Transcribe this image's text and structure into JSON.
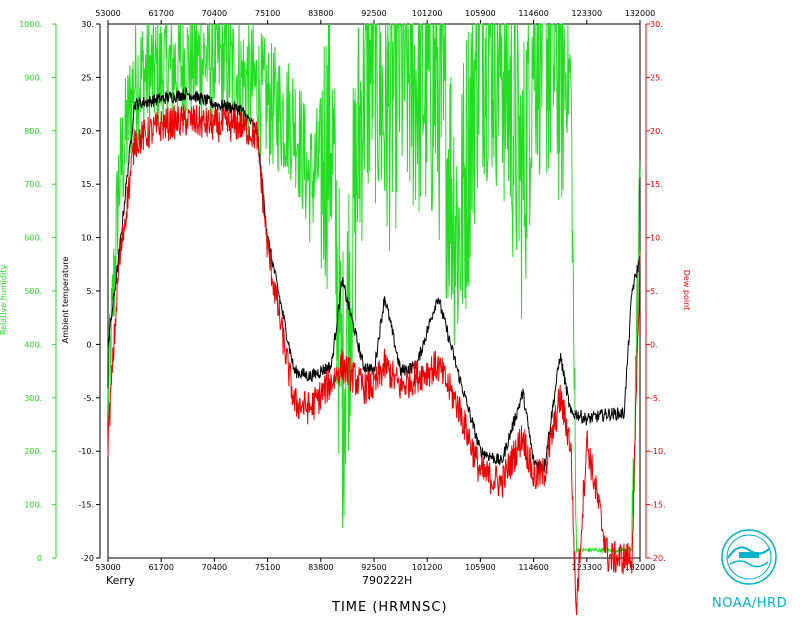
{
  "colors": {
    "rh": "#22dd22",
    "temp": "#000000",
    "dew": "#ee0000",
    "noaa": "#00b4c8"
  },
  "footer": {
    "storm": "Kerry",
    "flight": "790222H",
    "time_label": "TIME (HRMNSC)",
    "org": "NOAA/HRD"
  },
  "chart_data": {
    "type": "line",
    "x_ticks": [
      "53000",
      "61700",
      "70400",
      "75100",
      "83800",
      "92500",
      "101200",
      "105900",
      "114600",
      "123300",
      "132000"
    ],
    "top_x_ticks": [
      "53000",
      "61700",
      "70400",
      "75100",
      "83800",
      "92500",
      "101200",
      "105900",
      "114600",
      "123300",
      "132000"
    ],
    "xlim_hours_fraction": [
      0,
      1
    ],
    "xlabel": "TIME (HRMNSC)",
    "y_left_label": "Relative humidity",
    "y_left_ticks": [
      "0",
      "100.",
      "200.",
      "300.",
      "400.",
      "500.",
      "600.",
      "700.",
      "800.",
      "900.",
      "1000."
    ],
    "y_left_lim": [
      0,
      1000
    ],
    "y_temp_label": "Ambient temperature",
    "y_temp_ticks": [
      "-20",
      "-15.",
      "-10.",
      "-5.",
      "0.",
      "5.",
      "10.",
      "15.",
      "20.",
      "25.",
      "30."
    ],
    "y_right_label": "Dew point",
    "y_right_ticks": [
      "-20.",
      "-15.",
      "-10.",
      "-5.",
      "0.",
      "5.",
      "10.",
      "15.",
      "20.",
      "25.",
      "30."
    ],
    "y_temp_lim": [
      -20,
      30
    ],
    "series": [
      {
        "name": "Ambient temperature",
        "color_key": "temp",
        "x": [
          0.0,
          0.02,
          0.05,
          0.1,
          0.15,
          0.2,
          0.25,
          0.28,
          0.3,
          0.35,
          0.38,
          0.42,
          0.44,
          0.48,
          0.5,
          0.52,
          0.55,
          0.58,
          0.62,
          0.66,
          0.7,
          0.74,
          0.78,
          0.8,
          0.82,
          0.85,
          0.87,
          0.88,
          0.9,
          0.94,
          0.97,
          0.985,
          1.0
        ],
        "y": [
          0.0,
          8.0,
          22.5,
          23.0,
          23.5,
          22.5,
          22.0,
          20.0,
          10.0,
          -2.5,
          -3.0,
          -2.0,
          6.0,
          -2.0,
          -2.5,
          4.5,
          -2.5,
          -2.0,
          4.5,
          -3.0,
          -10.0,
          -11.0,
          -4.5,
          -11.0,
          -11.5,
          -1.0,
          -6.5,
          -6.5,
          -7.0,
          -6.5,
          -6.5,
          5.0,
          8.0
        ]
      },
      {
        "name": "Dew point",
        "color_key": "dew",
        "x": [
          0.0,
          0.02,
          0.05,
          0.1,
          0.15,
          0.2,
          0.25,
          0.28,
          0.3,
          0.35,
          0.38,
          0.42,
          0.44,
          0.48,
          0.5,
          0.52,
          0.55,
          0.58,
          0.62,
          0.66,
          0.7,
          0.74,
          0.78,
          0.8,
          0.82,
          0.85,
          0.87,
          0.88,
          0.9,
          0.94,
          0.97,
          0.985,
          1.0
        ],
        "y": [
          -9.0,
          7.0,
          19.0,
          20.5,
          21.0,
          20.5,
          20.5,
          19.5,
          9.0,
          -5.5,
          -6.0,
          -3.5,
          -2.0,
          -4.0,
          -4.0,
          -2.0,
          -4.0,
          -3.0,
          -2.0,
          -6.0,
          -12.0,
          -13.0,
          -8.5,
          -12.5,
          -12.0,
          -5.0,
          -9.5,
          -25.0,
          -9.0,
          -20.0,
          -20.0,
          -20.0,
          8.0
        ]
      },
      {
        "name": "Relative humidity",
        "color_key": "rh",
        "x": [
          0.0,
          0.02,
          0.05,
          0.1,
          0.15,
          0.2,
          0.25,
          0.28,
          0.3,
          0.35,
          0.38,
          0.42,
          0.44,
          0.48,
          0.5,
          0.52,
          0.55,
          0.58,
          0.62,
          0.66,
          0.7,
          0.74,
          0.78,
          0.8,
          0.82,
          0.85,
          0.87,
          0.88,
          0.9,
          0.94,
          0.97,
          0.985,
          1.0
        ],
        "y": [
          280,
          700,
          900,
          910,
          930,
          940,
          900,
          880,
          850,
          820,
          700,
          800,
          300,
          900,
          950,
          820,
          920,
          900,
          880,
          600,
          1000,
          950,
          700,
          1000,
          980,
          920,
          900,
          15,
          15,
          15,
          15,
          15,
          700
        ]
      }
    ]
  }
}
